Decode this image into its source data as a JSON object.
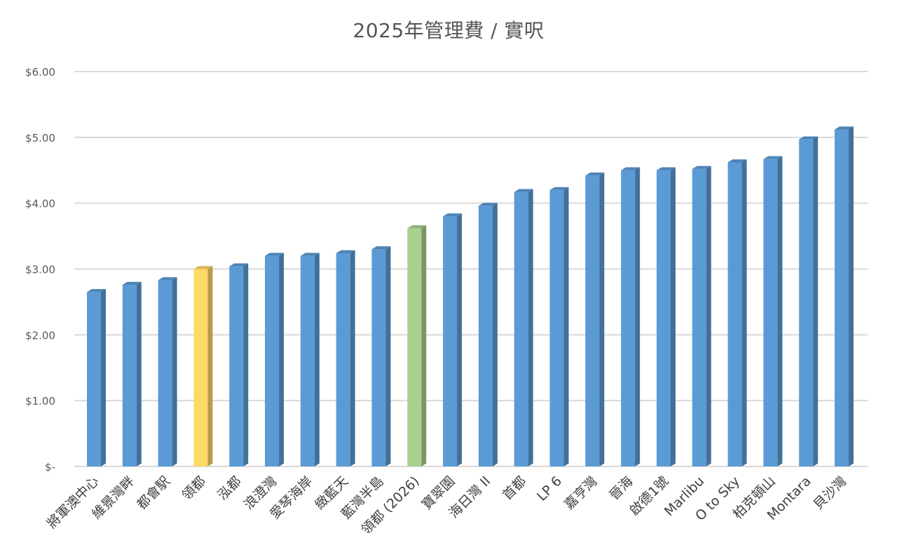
{
  "chart_data": {
    "type": "bar",
    "title": "2025年管理費 / 實呎",
    "xlabel": "",
    "ylabel": "",
    "ylim": [
      0,
      6
    ],
    "yticks": [
      {
        "value": 0,
        "label": "$-"
      },
      {
        "value": 1,
        "label": "$1.00"
      },
      {
        "value": 2,
        "label": "$2.00"
      },
      {
        "value": 3,
        "label": "$3.00"
      },
      {
        "value": 4,
        "label": "$4.00"
      },
      {
        "value": 5,
        "label": "$5.00"
      },
      {
        "value": 6,
        "label": "$6.00"
      }
    ],
    "grid": true,
    "legend": "none",
    "categories": [
      "將軍澳中心",
      "維景灣畔",
      "都會駅",
      "領都",
      "泓都",
      "浪澄灣",
      "愛琴海岸",
      "緻藍天",
      "藍灣半島",
      "領都 (2026)",
      "寶翠園",
      "海日灣 II",
      "首都",
      "LP 6",
      "嘉亨灣",
      "晉海",
      "啟德1號",
      "Marlibu",
      "O to Sky",
      "柏克頓山",
      "Montara",
      "貝沙灣"
    ],
    "values": [
      2.65,
      2.76,
      2.83,
      3.0,
      3.04,
      3.2,
      3.2,
      3.24,
      3.3,
      3.62,
      3.8,
      3.96,
      4.17,
      4.2,
      4.42,
      4.5,
      4.5,
      4.52,
      4.62,
      4.67,
      4.97,
      5.12
    ],
    "colors": {
      "default": "#5b9bd5",
      "highlight_yellow": "#ffd966",
      "highlight_green": "#a9d18e",
      "grid": "#d9d9d9",
      "axis_text": "#595959"
    },
    "highlights": [
      {
        "category": "領都",
        "color": "highlight_yellow"
      },
      {
        "category": "領都 (2026)",
        "color": "highlight_green"
      }
    ]
  }
}
